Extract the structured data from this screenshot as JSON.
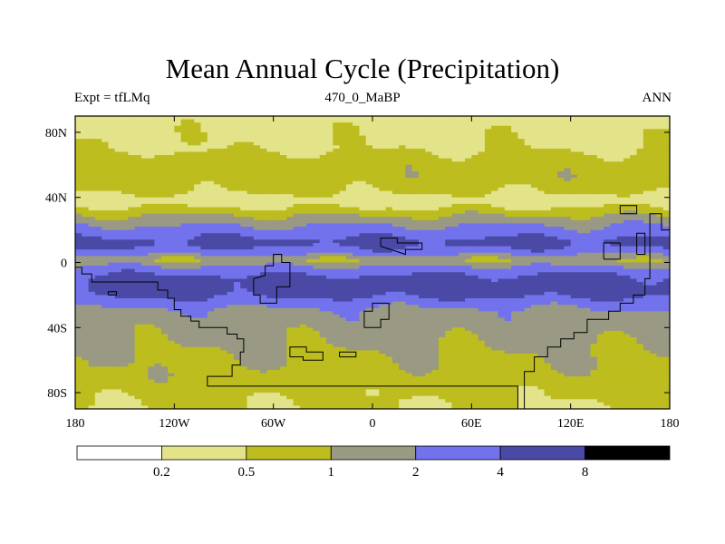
{
  "chart_data": {
    "type": "heatmap",
    "title": "Mean Annual Cycle (Precipitation)",
    "left_label": "Expt = tfLMq",
    "center_label": "470_0_MaBP",
    "right_label": "ANN",
    "x_range": [
      -180,
      180
    ],
    "y_range": [
      -90,
      90
    ],
    "x_ticks": [
      {
        "value": -180,
        "label": "180"
      },
      {
        "value": -120,
        "label": "120W"
      },
      {
        "value": -60,
        "label": "60W"
      },
      {
        "value": 0,
        "label": "0"
      },
      {
        "value": 60,
        "label": "60E"
      },
      {
        "value": 120,
        "label": "120E"
      },
      {
        "value": 180,
        "label": "180"
      }
    ],
    "y_ticks": [
      {
        "value": 80,
        "label": "80N"
      },
      {
        "value": 40,
        "label": "40N"
      },
      {
        "value": 0,
        "label": "0"
      },
      {
        "value": -40,
        "label": "40S"
      },
      {
        "value": -80,
        "label": "80S"
      }
    ],
    "levels": [
      0.2,
      0.5,
      1,
      2,
      4,
      8
    ],
    "level_labels": [
      "0.2",
      "0.5",
      "1",
      "2",
      "4",
      "8"
    ],
    "colors": [
      "#ffffff",
      "#e3e38a",
      "#bdbd1f",
      "#999984",
      "#7272ec",
      "#4a4aa6",
      "#000000"
    ],
    "outline_color": "#000000",
    "band_profile": [
      {
        "lat": 90,
        "value": 0.35
      },
      {
        "lat": 80,
        "value": 0.4
      },
      {
        "lat": 70,
        "value": 0.45
      },
      {
        "lat": 62,
        "value": 0.7
      },
      {
        "lat": 52,
        "value": 0.75
      },
      {
        "lat": 45,
        "value": 0.6
      },
      {
        "lat": 38,
        "value": 0.3
      },
      {
        "lat": 32,
        "value": 0.6
      },
      {
        "lat": 25,
        "value": 1.5
      },
      {
        "lat": 18,
        "value": 3.0
      },
      {
        "lat": 12,
        "value": 5.0
      },
      {
        "lat": 7,
        "value": 3.0
      },
      {
        "lat": 2,
        "value": 0.8
      },
      {
        "lat": -4,
        "value": 2.5
      },
      {
        "lat": -10,
        "value": 5.0
      },
      {
        "lat": -18,
        "value": 5.5
      },
      {
        "lat": -24,
        "value": 3.0
      },
      {
        "lat": -30,
        "value": 1.6
      },
      {
        "lat": -40,
        "value": 1.3
      },
      {
        "lat": -55,
        "value": 1.0
      },
      {
        "lat": -70,
        "value": 0.8
      },
      {
        "lat": -80,
        "value": 0.6
      },
      {
        "lat": -90,
        "value": 0.5
      }
    ],
    "continents": [
      [
        [
          -100,
          -76
        ],
        [
          -100,
          -70
        ],
        [
          -85,
          -70
        ],
        [
          -85,
          -63
        ],
        [
          -80,
          -63
        ],
        [
          -80,
          -55
        ],
        [
          -78,
          -55
        ],
        [
          -78,
          -47
        ],
        [
          -82,
          -47
        ],
        [
          -82,
          -44
        ],
        [
          -88,
          -44
        ],
        [
          -88,
          -40
        ],
        [
          -105,
          -40
        ],
        [
          -105,
          -36
        ],
        [
          -110,
          -36
        ],
        [
          -110,
          -33
        ],
        [
          -116,
          -33
        ],
        [
          -116,
          -29
        ],
        [
          -120,
          -29
        ],
        [
          -120,
          -22
        ],
        [
          -124,
          -22
        ],
        [
          -124,
          -17
        ],
        [
          -130,
          -17
        ],
        [
          -130,
          -12
        ],
        [
          -170,
          -12
        ],
        [
          -170,
          -7
        ],
        [
          -176,
          -7
        ],
        [
          -176,
          -3
        ],
        [
          -180,
          -3
        ],
        [
          -180,
          -92
        ],
        [
          92,
          -92
        ],
        [
          92,
          -67
        ],
        [
          98,
          -67
        ],
        [
          98,
          -58
        ],
        [
          106,
          -58
        ],
        [
          106,
          -52
        ],
        [
          114,
          -52
        ],
        [
          114,
          -47
        ],
        [
          122,
          -47
        ],
        [
          122,
          -43
        ],
        [
          130,
          -43
        ],
        [
          130,
          -35
        ],
        [
          143,
          -35
        ],
        [
          143,
          -30
        ],
        [
          150,
          -30
        ],
        [
          150,
          -25
        ],
        [
          158,
          -25
        ],
        [
          158,
          -20
        ],
        [
          165,
          -20
        ],
        [
          165,
          -10
        ],
        [
          168,
          -10
        ],
        [
          168,
          30
        ],
        [
          175,
          30
        ],
        [
          175,
          20
        ],
        [
          180,
          20
        ],
        [
          180,
          -92
        ],
        [
          88,
          -92
        ],
        [
          88,
          -76
        ],
        [
          -100,
          -76
        ]
      ],
      [
        [
          -50,
          -58
        ],
        [
          -50,
          -52
        ],
        [
          -40,
          -52
        ],
        [
          -40,
          -55
        ],
        [
          -30,
          -55
        ],
        [
          -30,
          -60
        ],
        [
          -42,
          -60
        ],
        [
          -42,
          -58
        ],
        [
          -50,
          -58
        ]
      ],
      [
        [
          -20,
          -58
        ],
        [
          -20,
          -55
        ],
        [
          -10,
          -55
        ],
        [
          -10,
          -58
        ],
        [
          -20,
          -58
        ]
      ],
      [
        [
          -65,
          -8
        ],
        [
          -65,
          -2
        ],
        [
          -60,
          -2
        ],
        [
          -60,
          5
        ],
        [
          -55,
          5
        ],
        [
          -55,
          0
        ],
        [
          -50,
          0
        ],
        [
          -50,
          -15
        ],
        [
          -58,
          -15
        ],
        [
          -58,
          -25
        ],
        [
          -68,
          -25
        ],
        [
          -68,
          -20
        ],
        [
          -72,
          -20
        ],
        [
          -72,
          -10
        ],
        [
          -65,
          -8
        ]
      ],
      [
        [
          -5,
          -40
        ],
        [
          -5,
          -30
        ],
        [
          0,
          -30
        ],
        [
          0,
          -25
        ],
        [
          10,
          -25
        ],
        [
          10,
          -35
        ],
        [
          5,
          -35
        ],
        [
          5,
          -40
        ],
        [
          -5,
          -40
        ]
      ],
      [
        [
          5,
          10
        ],
        [
          5,
          15
        ],
        [
          15,
          15
        ],
        [
          15,
          12
        ],
        [
          30,
          12
        ],
        [
          30,
          8
        ],
        [
          20,
          8
        ],
        [
          20,
          5
        ],
        [
          5,
          10
        ]
      ],
      [
        [
          140,
          2
        ],
        [
          140,
          12
        ],
        [
          150,
          12
        ],
        [
          150,
          2
        ],
        [
          140,
          2
        ]
      ],
      [
        [
          160,
          5
        ],
        [
          160,
          18
        ],
        [
          165,
          18
        ],
        [
          165,
          5
        ],
        [
          160,
          5
        ]
      ],
      [
        [
          150,
          30
        ],
        [
          150,
          35
        ],
        [
          160,
          35
        ],
        [
          160,
          30
        ],
        [
          150,
          30
        ]
      ],
      [
        [
          -160,
          -20
        ],
        [
          -160,
          -18
        ],
        [
          -155,
          -18
        ],
        [
          -155,
          -20
        ],
        [
          -160,
          -20
        ]
      ]
    ]
  }
}
